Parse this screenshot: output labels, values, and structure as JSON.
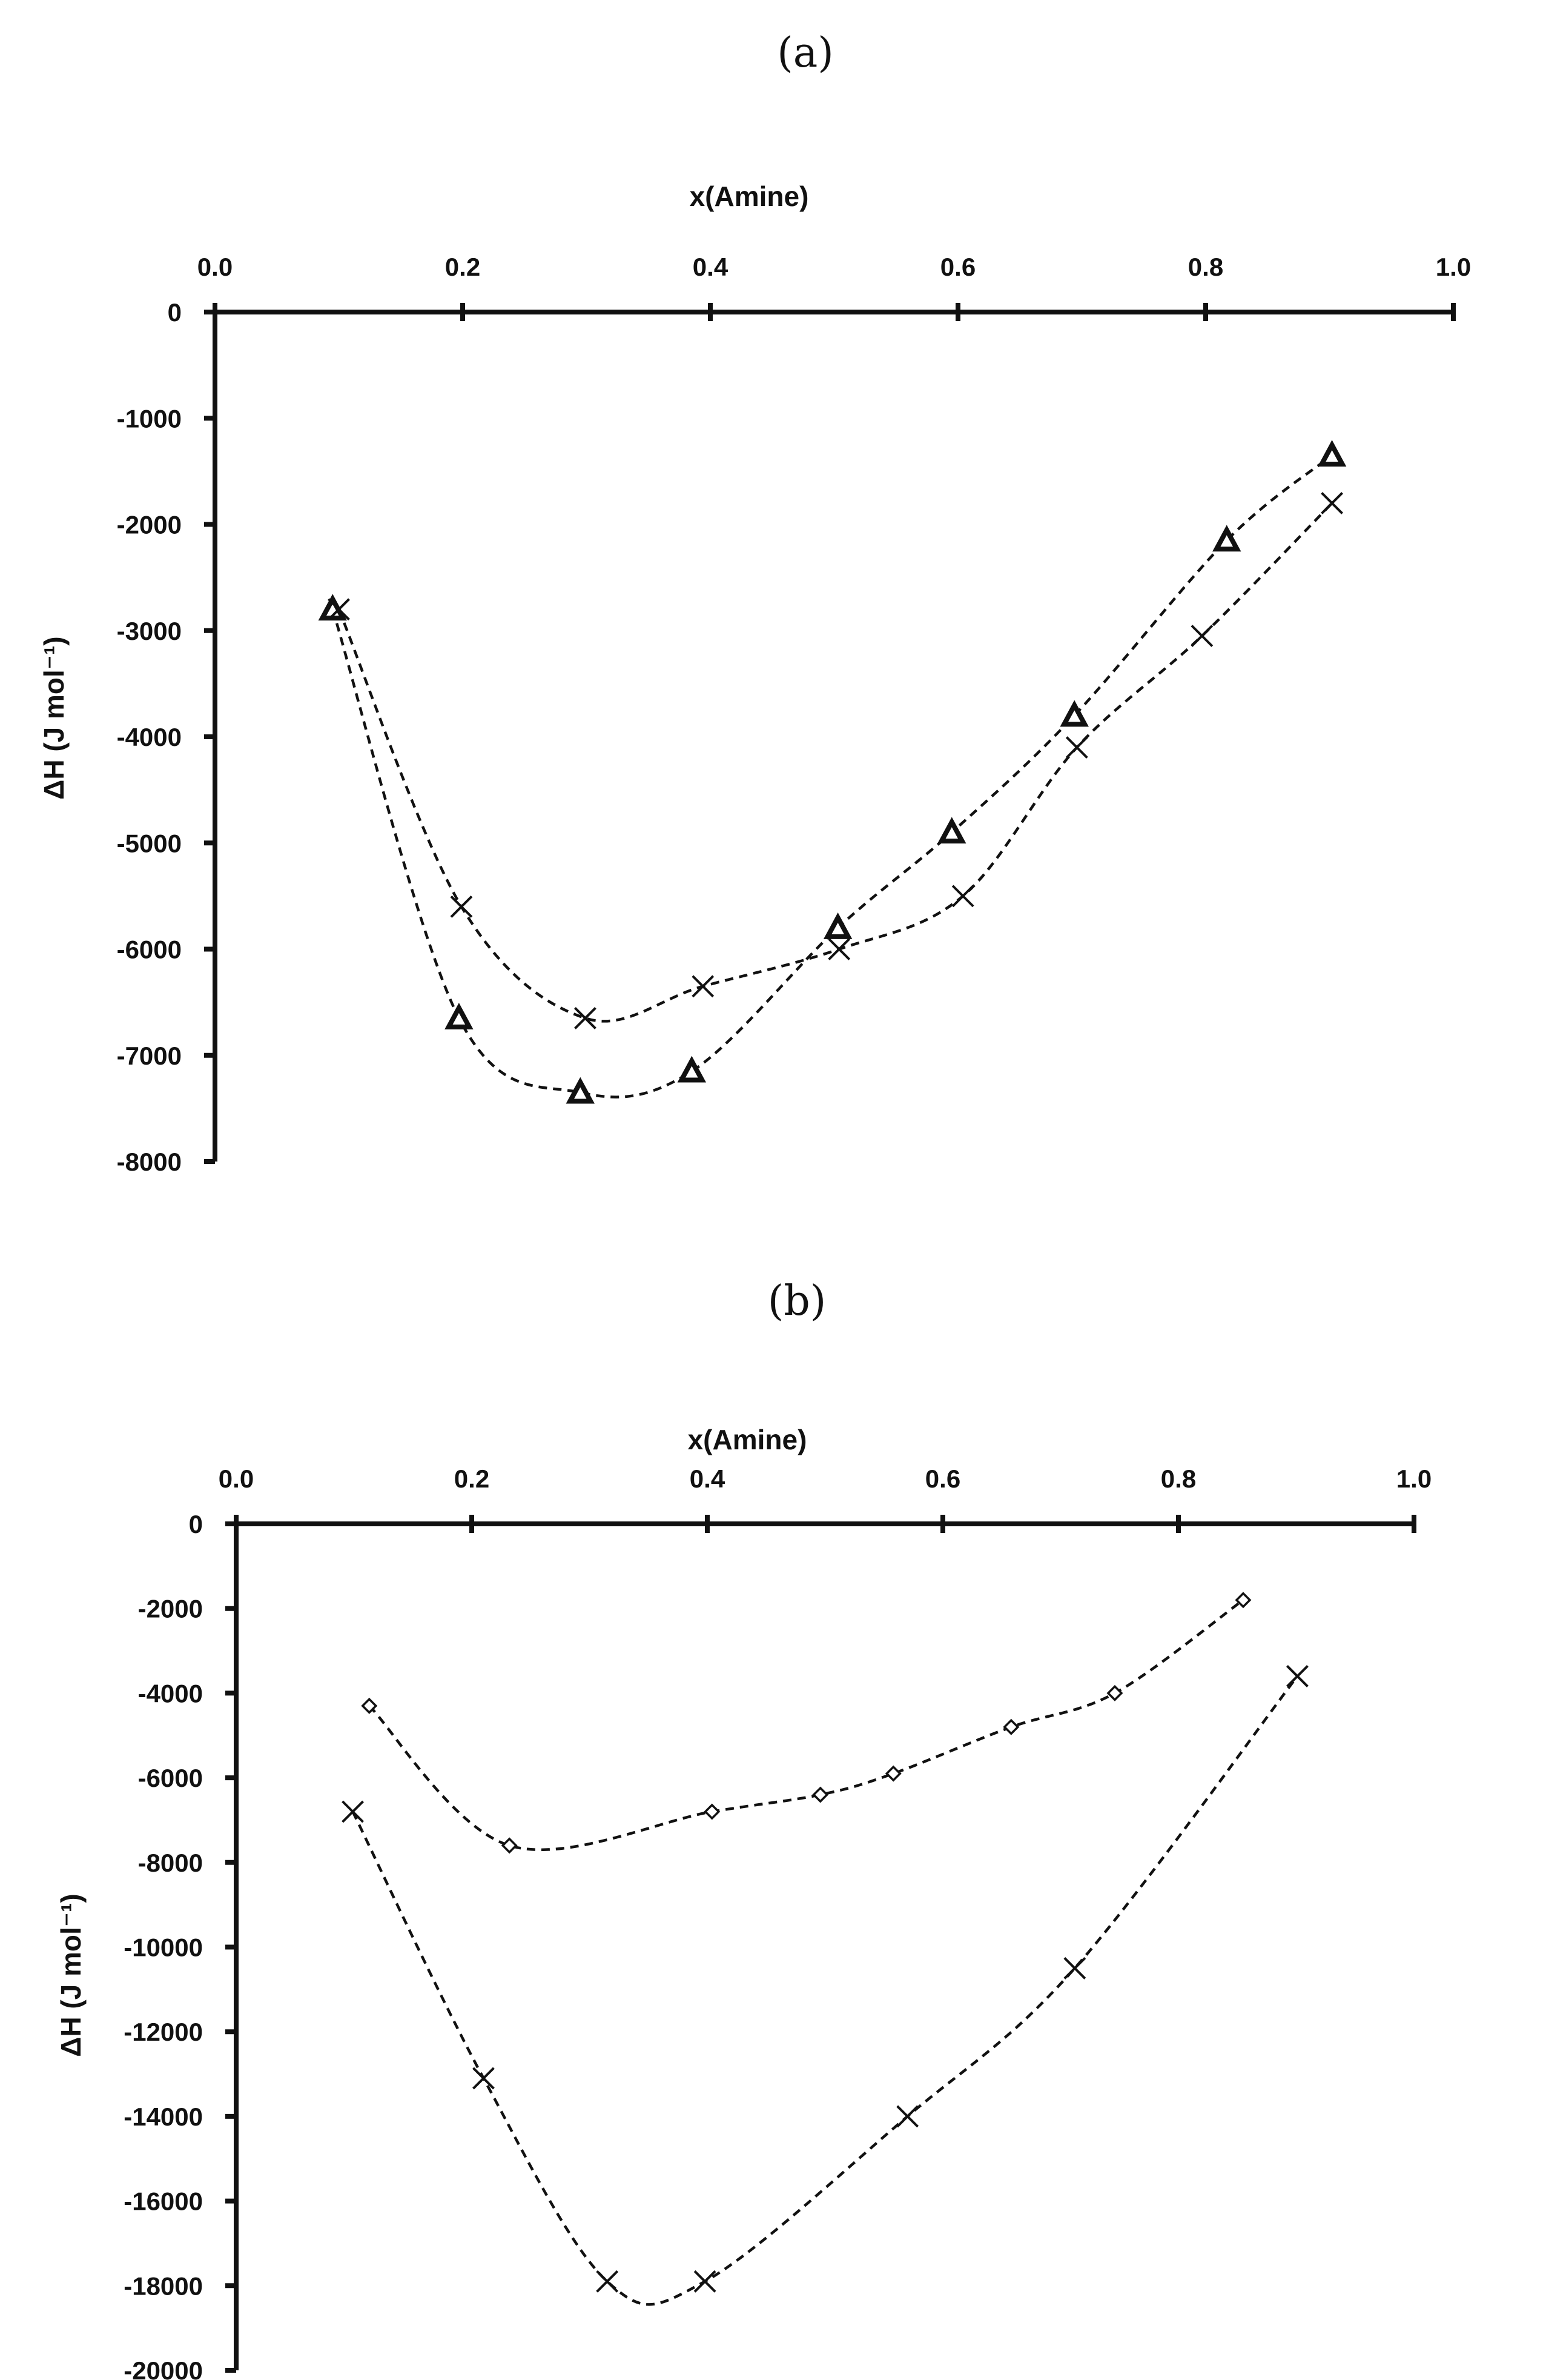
{
  "chart_data": [
    {
      "panel_label": "(a)",
      "type": "line",
      "xlabel": "x(Amine)",
      "ylabel": "ΔH (J mol⁻¹)",
      "xlim": [
        0.0,
        1.0
      ],
      "ylim": [
        -8000,
        0
      ],
      "x_ticks": [
        "0.0",
        "0.2",
        "0.4",
        "0.6",
        "0.8",
        "1.0"
      ],
      "y_ticks": [
        "0",
        "-1000",
        "-2000",
        "-3000",
        "-4000",
        "-5000",
        "-6000",
        "-7000",
        "-8000"
      ],
      "x_axis_position": "top",
      "grid": false,
      "series": [
        {
          "name": "triangle series",
          "marker": "triangle",
          "x": [
            0.095,
            0.197,
            0.295,
            0.385,
            0.503,
            0.595,
            0.694,
            0.817,
            0.902
          ],
          "y": [
            -2800,
            -6650,
            -7350,
            -7150,
            -5800,
            -4900,
            -3800,
            -2150,
            -1350
          ]
        },
        {
          "name": "cross series",
          "marker": "x",
          "x": [
            0.1,
            0.199,
            0.299,
            0.394,
            0.504,
            0.604,
            0.696,
            0.797,
            0.902
          ],
          "y": [
            -2800,
            -5600,
            -6650,
            -6350,
            -6000,
            -5500,
            -4100,
            -3050,
            -1800
          ]
        }
      ]
    },
    {
      "panel_label": "(b)",
      "type": "line",
      "xlabel": "x(Amine)",
      "ylabel": "ΔH (J mol⁻¹)",
      "xlim": [
        0.0,
        1.0
      ],
      "ylim": [
        -20000,
        0
      ],
      "x_ticks": [
        "0.0",
        "0.2",
        "0.4",
        "0.6",
        "0.8",
        "1.0"
      ],
      "y_ticks": [
        "0",
        "-2000",
        "-4000",
        "-6000",
        "-8000",
        "-10000",
        "-12000",
        "-14000",
        "-16000",
        "-18000",
        "-20000"
      ],
      "x_axis_position": "top",
      "grid": false,
      "series": [
        {
          "name": "diamond series",
          "marker": "diamond",
          "x": [
            0.113,
            0.232,
            0.404,
            0.496,
            0.558,
            0.658,
            0.746,
            0.855
          ],
          "y": [
            -4300,
            -7600,
            -6800,
            -6400,
            -5900,
            -4800,
            -4000,
            -1800
          ]
        },
        {
          "name": "cross series",
          "marker": "x",
          "x": [
            0.099,
            0.21,
            0.315,
            0.398,
            0.57,
            0.712,
            0.901
          ],
          "y": [
            -6800,
            -13100,
            -17900,
            -17900,
            -14000,
            -10500,
            -3600
          ]
        }
      ]
    }
  ]
}
